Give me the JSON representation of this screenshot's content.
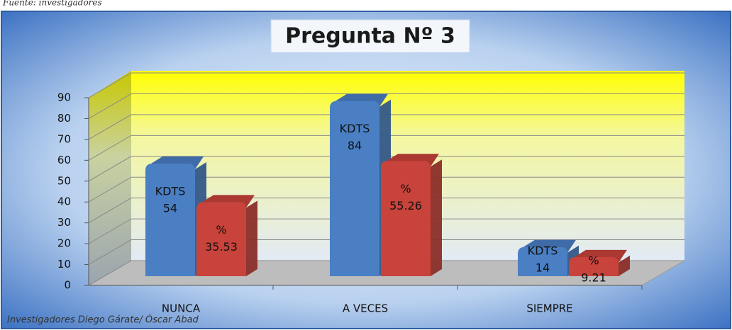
{
  "chart_data": {
    "type": "bar3d",
    "source": "Fuente: investigadores",
    "title": "Pregunta Nº 3",
    "footer": "Investigadores Diego Gárate/ Óscar Abad",
    "categories": [
      "NUNCA",
      "A VECES",
      "SIEMPRE"
    ],
    "series": [
      {
        "name": "KDTS",
        "color": "#4a7fc4",
        "values": [
          54,
          84,
          14
        ]
      },
      {
        "name": "%",
        "color": "#c8433b",
        "values": [
          35.53,
          55.26,
          9.21
        ]
      }
    ],
    "ylim": [
      0,
      90
    ],
    "yticks": [
      0,
      10,
      20,
      30,
      40,
      50,
      60,
      70,
      80,
      90
    ],
    "grid": true
  }
}
